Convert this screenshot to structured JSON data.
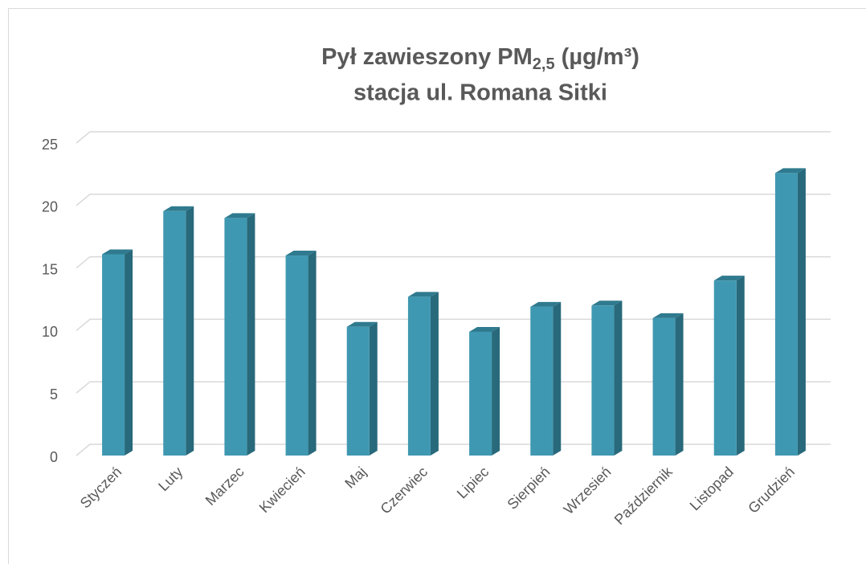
{
  "chart_data": {
    "type": "bar3d",
    "title": {
      "prefix": "Pył zawieszony PM",
      "subscript": "2,5",
      "suffix": " (µg/m³)"
    },
    "subtitle": "stacja ul. Romana Sitki",
    "categories": [
      "Styczeń",
      "Luty",
      "Marzec",
      "Kwiecień",
      "Maj",
      "Czerwiec",
      "Lipiec",
      "Sierpień",
      "Wrzesień",
      "Październik",
      "Listopad",
      "Grudzień"
    ],
    "values": [
      16.1,
      19.55,
      19.0,
      16.0,
      10.3,
      12.7,
      9.9,
      11.9,
      12.0,
      11.0,
      14.0,
      22.6
    ],
    "color": "#3f98b1",
    "ylim": [
      0,
      25
    ],
    "yticks": [
      0,
      5,
      10,
      15,
      20,
      25
    ],
    "grid": true
  }
}
